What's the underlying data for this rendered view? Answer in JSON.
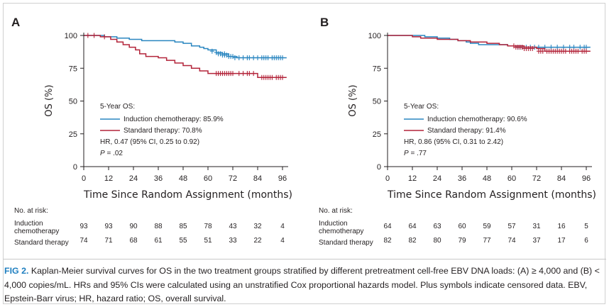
{
  "figure": {
    "caption_label": "FIG 2.",
    "caption_text": "Kaplan-Meier survival curves for OS in the two treatment groups stratified by different pretreatment cell-free EBV DNA loads: (A) ≥ 4,000 and (B) < 4,000 copies/mL. HRs and 95% CIs were calculated using an unstratified Cox proportional hazards model. Plus symbols indicate censored data. EBV, Epstein-Barr virus; HR, hazard ratio; OS, overall survival."
  },
  "colors": {
    "induction": "#2a86c0",
    "standard": "#b3243a",
    "axis": "#231f20"
  },
  "chart_data": [
    {
      "type": "line",
      "panel": "A",
      "xlabel": "Time Since Random Assignment (months)",
      "ylabel": "OS (%)",
      "xlim": [
        0,
        96
      ],
      "ylim": [
        0,
        100
      ],
      "xticks": [
        "0",
        "12",
        "24",
        "36",
        "48",
        "60",
        "72",
        "84",
        "96"
      ],
      "yticks": [
        "0",
        "25",
        "50",
        "75",
        "100"
      ],
      "legend": {
        "title": "5-Year OS:",
        "entries": [
          "Induction chemotherapy: 85.9%",
          "Standard therapy: 70.8%"
        ],
        "hr": "HR, 0.47 (95% CI, 0.25 to 0.92)",
        "p": ".02"
      },
      "series": [
        {
          "name": "Induction chemotherapy",
          "color": "#2a86c0",
          "steps": [
            [
              0,
              100
            ],
            [
              10,
              99
            ],
            [
              16,
              98
            ],
            [
              22,
              97
            ],
            [
              28,
              96
            ],
            [
              44,
              95
            ],
            [
              48,
              94
            ],
            [
              52,
              92
            ],
            [
              56,
              91
            ],
            [
              58,
              90
            ],
            [
              60,
              89
            ],
            [
              64,
              87
            ],
            [
              67,
              86
            ],
            [
              70,
              84
            ],
            [
              74,
              83
            ],
            [
              98,
              83
            ]
          ],
          "censored": [
            [
              62,
              88
            ],
            [
              64,
              87
            ],
            [
              65,
              86
            ],
            [
              66,
              86
            ],
            [
              67,
              85
            ],
            [
              68,
              85
            ],
            [
              68,
              86
            ],
            [
              69,
              85
            ],
            [
              70,
              84
            ],
            [
              71,
              84
            ],
            [
              72,
              84
            ],
            [
              73,
              83
            ],
            [
              75,
              83
            ],
            [
              77,
              83
            ],
            [
              79,
              83
            ],
            [
              80,
              83
            ],
            [
              82,
              83
            ],
            [
              84,
              83
            ],
            [
              86,
              83
            ],
            [
              87,
              83
            ],
            [
              88,
              83
            ],
            [
              89,
              83
            ],
            [
              91,
              83
            ],
            [
              92,
              83
            ],
            [
              93,
              83
            ],
            [
              94,
              83
            ],
            [
              95,
              83
            ],
            [
              96,
              83
            ]
          ]
        },
        {
          "name": "Standard therapy",
          "color": "#b3243a",
          "steps": [
            [
              0,
              100
            ],
            [
              8,
              99
            ],
            [
              13,
              97
            ],
            [
              16,
              95
            ],
            [
              19,
              93
            ],
            [
              22,
              91
            ],
            [
              25,
              89
            ],
            [
              27,
              86
            ],
            [
              30,
              84
            ],
            [
              36,
              83
            ],
            [
              40,
              81
            ],
            [
              44,
              79
            ],
            [
              48,
              77
            ],
            [
              52,
              75
            ],
            [
              56,
              73
            ],
            [
              60,
              71
            ],
            [
              82,
              71
            ],
            [
              84,
              68
            ],
            [
              98,
              68
            ]
          ],
          "censored": [
            [
              2,
              100
            ],
            [
              5,
              100
            ],
            [
              10,
              99
            ],
            [
              64,
              71
            ],
            [
              65,
              71
            ],
            [
              66,
              71
            ],
            [
              67,
              71
            ],
            [
              68,
              71
            ],
            [
              69,
              71
            ],
            [
              70,
              71
            ],
            [
              71,
              71
            ],
            [
              72,
              71
            ],
            [
              75,
              71
            ],
            [
              77,
              71
            ],
            [
              79,
              71
            ],
            [
              80,
              71
            ],
            [
              82,
              71
            ],
            [
              86,
              68
            ],
            [
              87,
              68
            ],
            [
              88,
              68
            ],
            [
              89,
              68
            ],
            [
              90,
              68
            ],
            [
              91,
              68
            ],
            [
              93,
              68
            ],
            [
              94,
              68
            ],
            [
              95,
              68
            ],
            [
              96,
              68
            ]
          ]
        }
      ],
      "risk_table": {
        "title": "No. at risk:",
        "rows": [
          {
            "label_line1": "Induction",
            "label_line2": "chemotherapy",
            "values": [
              "93",
              "93",
              "90",
              "88",
              "85",
              "78",
              "43",
              "32",
              "4"
            ]
          },
          {
            "label_line1": "Standard therapy",
            "label_line2": "",
            "values": [
              "74",
              "71",
              "68",
              "61",
              "55",
              "51",
              "33",
              "22",
              "4"
            ]
          }
        ]
      }
    },
    {
      "type": "line",
      "panel": "B",
      "xlabel": "Time Since Random Assignment (months)",
      "ylabel": "OS (%)",
      "xlim": [
        0,
        96
      ],
      "ylim": [
        0,
        100
      ],
      "xticks": [
        "0",
        "12",
        "24",
        "36",
        "48",
        "60",
        "72",
        "84",
        "96"
      ],
      "yticks": [
        "0",
        "25",
        "50",
        "75",
        "100"
      ],
      "legend": {
        "title": "5-Year OS:",
        "entries": [
          "Induction chemotherapy: 90.6%",
          "Standard therapy: 91.4%"
        ],
        "hr": "HR, 0.86 (95% CI, 0.31 to 2.42)",
        "p": ".77"
      },
      "series": [
        {
          "name": "Induction chemotherapy",
          "color": "#2a86c0",
          "steps": [
            [
              0,
              100
            ],
            [
              18,
              99
            ],
            [
              24,
              98
            ],
            [
              30,
              97
            ],
            [
              34,
              96
            ],
            [
              38,
              95
            ],
            [
              40,
              94
            ],
            [
              44,
              93
            ],
            [
              58,
              92
            ],
            [
              62,
              91
            ],
            [
              98,
              91
            ]
          ],
          "censored": [
            [
              63,
              91
            ],
            [
              64,
              91
            ],
            [
              65,
              91
            ],
            [
              67,
              91
            ],
            [
              69,
              91
            ],
            [
              71,
              91
            ],
            [
              73,
              91
            ],
            [
              76,
              91
            ],
            [
              79,
              91
            ],
            [
              82,
              91
            ],
            [
              85,
              91
            ],
            [
              88,
              91
            ],
            [
              90,
              91
            ],
            [
              93,
              91
            ],
            [
              95,
              91
            ],
            [
              96,
              91
            ]
          ]
        },
        {
          "name": "Standard therapy",
          "color": "#b3243a",
          "steps": [
            [
              0,
              100
            ],
            [
              12,
              99
            ],
            [
              16,
              98
            ],
            [
              24,
              97
            ],
            [
              34,
              96
            ],
            [
              40,
              95
            ],
            [
              48,
              94
            ],
            [
              54,
              93
            ],
            [
              58,
              92
            ],
            [
              66,
              91
            ],
            [
              72,
              90
            ],
            [
              76,
              88
            ],
            [
              98,
              88
            ]
          ],
          "censored": [
            [
              61,
              92
            ],
            [
              62,
              91
            ],
            [
              63,
              91
            ],
            [
              64,
              91
            ],
            [
              65,
              91
            ],
            [
              66,
              90
            ],
            [
              67,
              90
            ],
            [
              68,
              90
            ],
            [
              69,
              90
            ],
            [
              70,
              90
            ],
            [
              73,
              88
            ],
            [
              74,
              88
            ],
            [
              75,
              88
            ],
            [
              77,
              88
            ],
            [
              78,
              88
            ],
            [
              79,
              88
            ],
            [
              80,
              88
            ],
            [
              81,
              88
            ],
            [
              82,
              88
            ],
            [
              83,
              88
            ],
            [
              84,
              88
            ],
            [
              85,
              88
            ],
            [
              86,
              88
            ],
            [
              88,
              88
            ],
            [
              89,
              88
            ],
            [
              90,
              88
            ],
            [
              91,
              88
            ],
            [
              92,
              88
            ],
            [
              94,
              88
            ],
            [
              95,
              88
            ],
            [
              96,
              88
            ]
          ]
        }
      ],
      "risk_table": {
        "title": "No. at risk:",
        "rows": [
          {
            "label_line1": "Induction",
            "label_line2": "chemotherapy",
            "values": [
              "64",
              "64",
              "63",
              "60",
              "59",
              "57",
              "31",
              "16",
              "5"
            ]
          },
          {
            "label_line1": "Standard therapy",
            "label_line2": "",
            "values": [
              "82",
              "82",
              "80",
              "79",
              "77",
              "74",
              "37",
              "17",
              "6"
            ]
          }
        ]
      }
    }
  ]
}
